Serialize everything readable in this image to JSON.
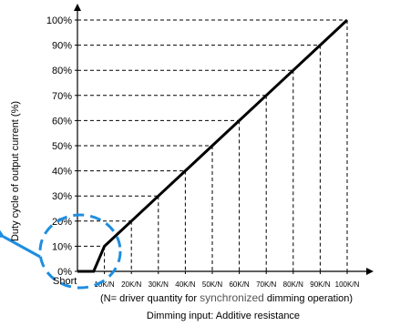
{
  "chart_data": {
    "type": "line",
    "ylabel": "Duty cycle of output current (%)",
    "xlabel": "Dimming input: Additive resistance",
    "x_note_prefix": "(N= driver quantity for ",
    "x_note_highlight": "synchronized",
    "x_note_suffix": " dimming operation)",
    "x_start_label": "Short",
    "categories": [
      "10K/N",
      "20K/N",
      "30K/N",
      "40K/N",
      "50K/N",
      "60K/N",
      "70K/N",
      "80K/N",
      "90K/N",
      "100K/N"
    ],
    "y_ticks": [
      "0%",
      "10%",
      "20%",
      "30%",
      "40%",
      "50%",
      "60%",
      "70%",
      "80%",
      "90%",
      "100%"
    ],
    "ylim": [
      0,
      100
    ],
    "xlim": [
      0,
      100
    ],
    "grid": "dashed guides",
    "series": [
      {
        "x": [
          0,
          6,
          10,
          20,
          30,
          40,
          50,
          60,
          70,
          80,
          90,
          100
        ],
        "y": [
          0,
          0,
          10,
          20,
          30,
          40,
          50,
          60,
          70,
          80,
          90,
          100
        ]
      }
    ],
    "annotation": "blue dashed circle with arrow around Short-10K/N region"
  }
}
